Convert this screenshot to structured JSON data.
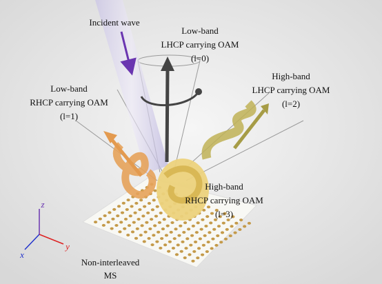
{
  "title_labels": {
    "incident": "Incident wave",
    "low_lhcp": [
      "Low-band",
      "LHCP carrying OAM",
      "(l=0)"
    ],
    "low_rhcp": [
      "Low-band",
      "RHCP carrying OAM",
      "(l=1)"
    ],
    "high_lhcp": [
      "High-band",
      "LHCP carrying OAM",
      "(l=2)"
    ],
    "high_rhcp": [
      "High-band",
      "RHCP carrying OAM",
      "(l=3)"
    ],
    "metasurface": [
      "Non-interleaved",
      "MS"
    ]
  },
  "axes": {
    "z": "z",
    "y": "y",
    "x": "x"
  }
}
